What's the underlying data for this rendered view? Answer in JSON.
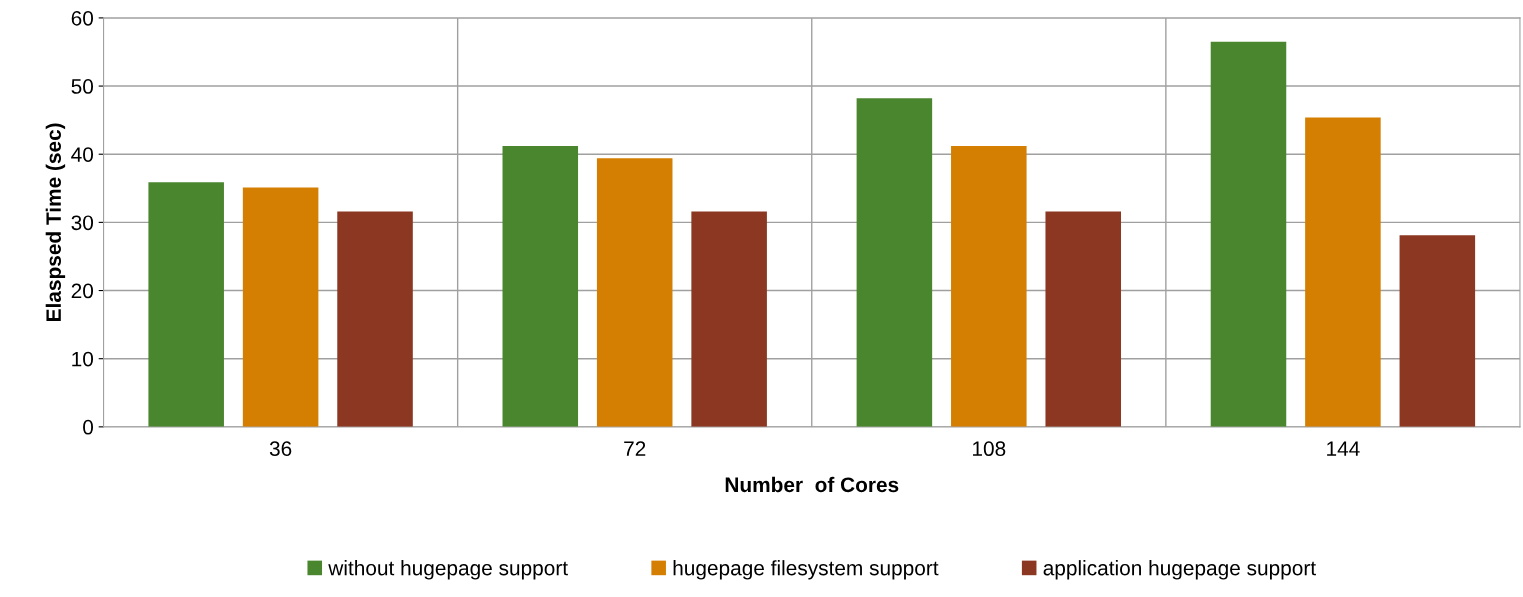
{
  "chart_data": {
    "type": "bar",
    "xlabel": "Number  of Cores",
    "ylabel": "Elaspsed Time (sec)",
    "categories": [
      "36",
      "72",
      "108",
      "144"
    ],
    "series": [
      {
        "name": "without hugepage support",
        "color": "#4a862e",
        "values": [
          35.9,
          41.2,
          48.2,
          56.5
        ]
      },
      {
        "name": "hugepage filesystem support",
        "color": "#d47f02",
        "values": [
          35.1,
          39.4,
          41.2,
          45.4
        ]
      },
      {
        "name": "application hugepage support",
        "color": "#8b3722",
        "values": [
          31.6,
          31.6,
          31.6,
          28.1
        ]
      }
    ],
    "ylim": [
      0,
      60
    ],
    "yticks": [
      0,
      10,
      20,
      30,
      40,
      50,
      60
    ],
    "grid": true,
    "legend": "bottom"
  }
}
